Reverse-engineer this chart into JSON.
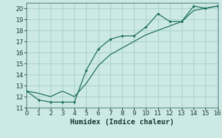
{
  "xlabel": "Humidex (Indice chaleur)",
  "bg_color": "#cce9e6",
  "grid_color": "#aad4d0",
  "line_color": "#1a6b5a",
  "line1_x": [
    0,
    1,
    2,
    3,
    4,
    5,
    6,
    7,
    8,
    9,
    10,
    11,
    12,
    13,
    14,
    15,
    16
  ],
  "line1_y": [
    12.5,
    11.7,
    11.5,
    11.5,
    11.5,
    14.4,
    16.3,
    17.2,
    17.5,
    17.5,
    18.3,
    19.5,
    18.8,
    18.8,
    20.2,
    20.0,
    20.2
  ],
  "line2_x": [
    0,
    1,
    2,
    3,
    4,
    5,
    6,
    7,
    8,
    9,
    10,
    11,
    12,
    13,
    14,
    15,
    16
  ],
  "line2_y": [
    12.5,
    12.3,
    12.0,
    12.5,
    12.0,
    13.2,
    14.8,
    15.8,
    16.4,
    17.0,
    17.6,
    18.0,
    18.4,
    18.8,
    19.8,
    20.0,
    20.2
  ],
  "xlim": [
    0,
    16
  ],
  "ylim": [
    11,
    20.5
  ],
  "yticks": [
    11,
    12,
    13,
    14,
    15,
    16,
    17,
    18,
    19,
    20
  ],
  "xticks": [
    0,
    1,
    2,
    3,
    4,
    5,
    6,
    7,
    8,
    9,
    10,
    11,
    12,
    13,
    14,
    15,
    16
  ],
  "tick_fontsize": 6.5,
  "label_fontsize": 7.5
}
